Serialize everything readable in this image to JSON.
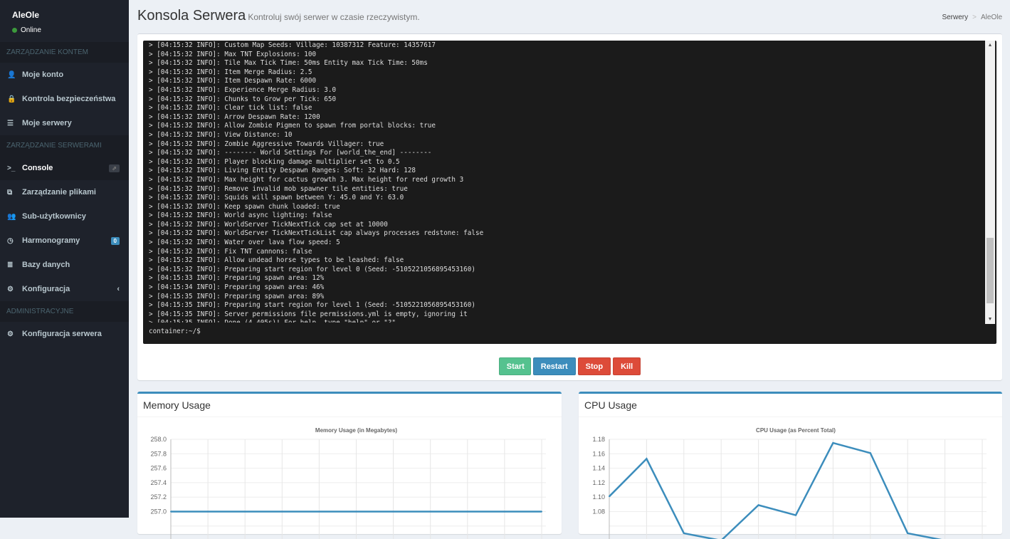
{
  "sidebar": {
    "user": "AleOle",
    "status": "Online",
    "sections": [
      {
        "header": "ZARZĄDZANIE KONTEM",
        "items": [
          {
            "label": "Moje konto",
            "icon": "user-icon"
          },
          {
            "label": "Kontrola bezpieczeństwa",
            "icon": "lock-icon"
          },
          {
            "label": "Moje serwery",
            "icon": "server-icon"
          }
        ]
      },
      {
        "header": "ZARZĄDZANIE SERWERAMI",
        "items": [
          {
            "label": "Console",
            "icon": "terminal-icon",
            "active": true
          },
          {
            "label": "Zarządzanie plikami",
            "icon": "files-icon"
          },
          {
            "label": "Sub-użytkownicy",
            "icon": "users-icon"
          },
          {
            "label": "Harmonogramy",
            "icon": "clock-icon",
            "badge": "0"
          },
          {
            "label": "Bazy danych",
            "icon": "database-icon"
          },
          {
            "label": "Konfiguracja",
            "icon": "gears-icon"
          }
        ]
      },
      {
        "header": "ADMINISTRACYJNE",
        "items": [
          {
            "label": "Konfiguracja serwera",
            "icon": "gear-icon"
          }
        ]
      }
    ]
  },
  "header": {
    "title": "Konsola Serwera",
    "subtitle": "Kontroluj swój serwer w czasie rzeczywistym.",
    "breadcrumb": [
      "Serwery",
      "AleOle"
    ]
  },
  "console": {
    "lines": [
      "> [04:15:32 INFO]: Custom Map Seeds: Village: 10387312 Feature: 14357617",
      "> [04:15:32 INFO]: Max TNT Explosions: 100",
      "> [04:15:32 INFO]: Tile Max Tick Time: 50ms Entity max Tick Time: 50ms",
      "> [04:15:32 INFO]: Item Merge Radius: 2.5",
      "> [04:15:32 INFO]: Item Despawn Rate: 6000",
      "> [04:15:32 INFO]: Experience Merge Radius: 3.0",
      "> [04:15:32 INFO]: Chunks to Grow per Tick: 650",
      "> [04:15:32 INFO]: Clear tick list: false",
      "> [04:15:32 INFO]: Arrow Despawn Rate: 1200",
      "> [04:15:32 INFO]: Allow Zombie Pigmen to spawn from portal blocks: true",
      "> [04:15:32 INFO]: View Distance: 10",
      "> [04:15:32 INFO]: Zombie Aggressive Towards Villager: true",
      "> [04:15:32 INFO]: -------- World Settings For [world_the_end] --------",
      "> [04:15:32 INFO]: Player blocking damage multiplier set to 0.5",
      "> [04:15:32 INFO]: Living Entity Despawn Ranges: Soft: 32 Hard: 128",
      "> [04:15:32 INFO]: Max height for cactus growth 3. Max height for reed growth 3",
      "> [04:15:32 INFO]: Remove invalid mob spawner tile entities: true",
      "> [04:15:32 INFO]: Squids will spawn between Y: 45.0 and Y: 63.0",
      "> [04:15:32 INFO]: Keep spawn chunk loaded: true",
      "> [04:15:32 INFO]: World async lighting: false",
      "> [04:15:32 INFO]: WorldServer TickNextTick cap set at 10000",
      "> [04:15:32 INFO]: WorldServer TickNextTickList cap always processes redstone: false",
      "> [04:15:32 INFO]: Water over lava flow speed: 5",
      "> [04:15:32 INFO]: Fix TNT cannons: false",
      "> [04:15:32 INFO]: Allow undead horse types to be leashed: false",
      "> [04:15:32 INFO]: Preparing start region for level 0 (Seed: -5105221056895453160)",
      "> [04:15:33 INFO]: Preparing spawn area: 12%",
      "> [04:15:34 INFO]: Preparing spawn area: 46%",
      "> [04:15:35 INFO]: Preparing spawn area: 89%",
      "> [04:15:35 INFO]: Preparing start region for level 1 (Seed: -5105221056895453160)",
      "> [04:15:35 INFO]: Server permissions file permissions.yml is empty, ignoring it",
      "> [04:15:35 INFO]: Done (4.405s)! For help, type \"help\" or \"?\""
    ],
    "prompt": "container:~/$",
    "scroll_position_percent": 72
  },
  "controls": {
    "start": "Start",
    "restart": "Restart",
    "stop": "Stop",
    "kill": "Kill"
  },
  "chart_data": [
    {
      "type": "line",
      "panel_title": "Memory Usage",
      "title": "Memory Usage (in Megabytes)",
      "y_ticks": [
        "258.0",
        "257.8",
        "257.6",
        "257.4",
        "257.2",
        "257.0"
      ],
      "ylim_visible": [
        257.0,
        258.0
      ],
      "grid": true,
      "color": "#3c8dbc",
      "values": [
        257,
        257,
        257,
        257,
        257,
        257,
        257,
        257,
        257,
        257,
        257
      ]
    },
    {
      "type": "line",
      "panel_title": "CPU Usage",
      "title": "CPU Usage (as Percent Total)",
      "y_ticks": [
        "1.18",
        "1.16",
        "1.14",
        "1.12",
        "1.10",
        "1.08"
      ],
      "ylim_visible": [
        1.07,
        1.18
      ],
      "grid": true,
      "color": "#3c8dbc",
      "values": [
        1.101,
        1.153,
        1.05,
        1.04,
        1.089,
        1.075,
        1.175,
        1.161,
        1.05,
        1.04,
        1.04
      ]
    }
  ]
}
